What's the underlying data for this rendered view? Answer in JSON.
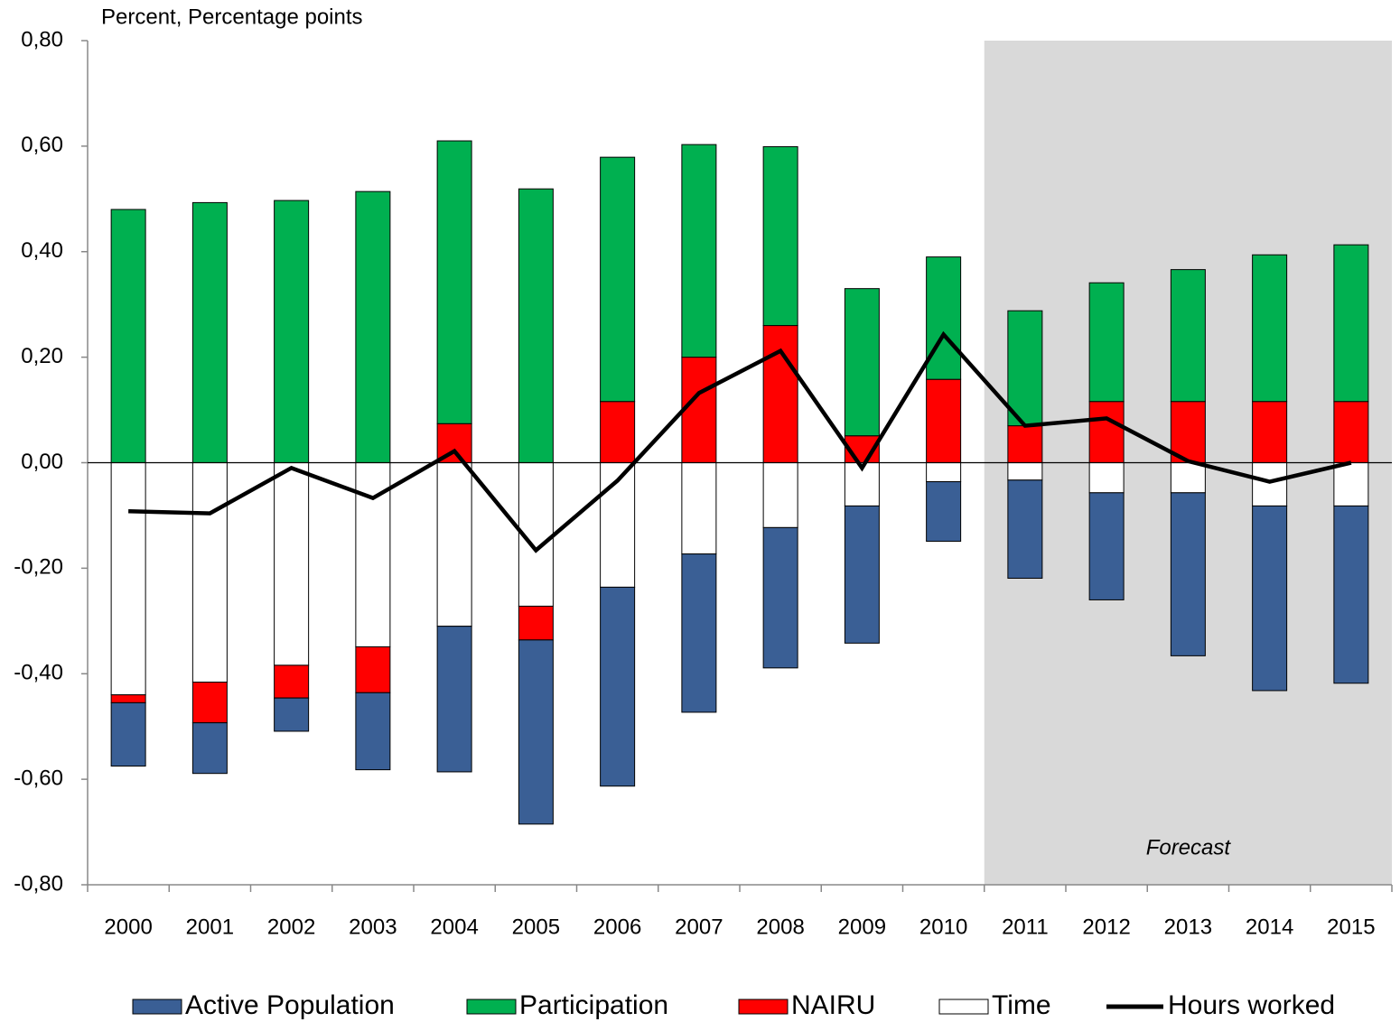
{
  "chart_data": {
    "type": "bar",
    "stacked": true,
    "y_axis_label": "Percent, Percentage points",
    "categories": [
      "2000",
      "2001",
      "2002",
      "2003",
      "2004",
      "2005",
      "2006",
      "2007",
      "2008",
      "2009",
      "2010",
      "2011",
      "2012",
      "2013",
      "2014",
      "2015"
    ],
    "series": [
      {
        "name": "Active Population",
        "color": "#3a5f95",
        "values": [
          -0.12,
          -0.096,
          -0.063,
          -0.146,
          -0.276,
          -0.349,
          -0.377,
          -0.3,
          -0.266,
          -0.26,
          -0.113,
          -0.186,
          -0.203,
          -0.309,
          -0.35,
          -0.336
        ]
      },
      {
        "name": "Participation",
        "color": "#00b050",
        "values": [
          0.48,
          0.493,
          0.497,
          0.514,
          0.536,
          0.519,
          0.463,
          0.403,
          0.339,
          0.279,
          0.232,
          0.218,
          0.225,
          0.25,
          0.278,
          0.297
        ]
      },
      {
        "name": "NAIRU",
        "color": "#ff0000",
        "values": [
          -0.015,
          -0.077,
          -0.062,
          -0.087,
          0.074,
          -0.064,
          0.116,
          0.2,
          0.26,
          0.051,
          0.158,
          0.07,
          0.116,
          0.116,
          0.116,
          0.116
        ]
      },
      {
        "name": "Time",
        "color": "#ffffff",
        "values": [
          -0.44,
          -0.416,
          -0.384,
          -0.349,
          -0.31,
          -0.272,
          -0.236,
          -0.173,
          -0.123,
          -0.082,
          -0.036,
          -0.033,
          -0.057,
          -0.057,
          -0.082,
          -0.082
        ]
      },
      {
        "name": "Hours worked",
        "color": "#000000",
        "type": "line",
        "values": [
          -0.092,
          -0.096,
          -0.01,
          -0.067,
          0.022,
          -0.166,
          -0.034,
          0.132,
          0.212,
          -0.01,
          0.243,
          0.07,
          0.084,
          0.003,
          -0.036,
          0
        ]
      }
    ],
    "ylim": [
      -0.8,
      0.8
    ],
    "yticks": [
      {
        "value": -0.8,
        "label": "-0,80"
      },
      {
        "value": -0.6,
        "label": "-0,60"
      },
      {
        "value": -0.4,
        "label": "-0,40"
      },
      {
        "value": -0.2,
        "label": "-0,20"
      },
      {
        "value": 0,
        "label": "0,00"
      },
      {
        "value": 0.2,
        "label": "0,20"
      },
      {
        "value": 0.4,
        "label": "0,40"
      },
      {
        "value": 0.6,
        "label": "0,60"
      },
      {
        "value": 0.8,
        "label": "0,80"
      }
    ],
    "annotations": [
      {
        "text": "Forecast",
        "start": "2011"
      }
    ],
    "legend": "bottom"
  }
}
